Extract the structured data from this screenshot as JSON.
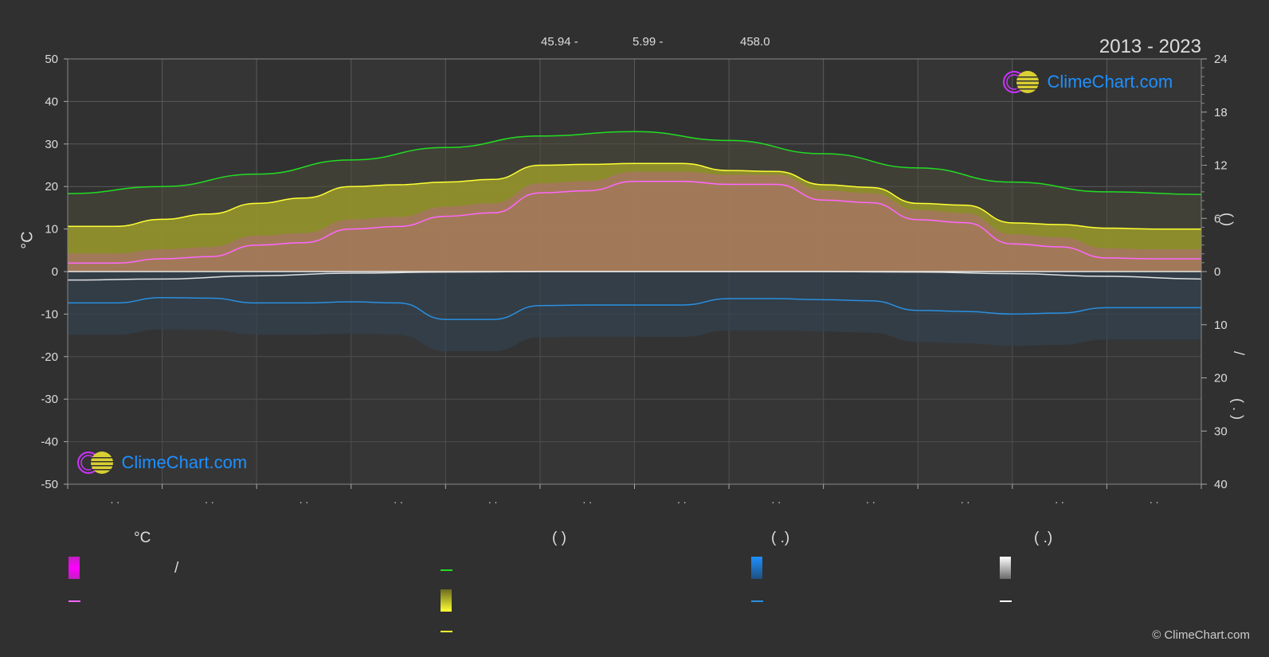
{
  "header": {
    "stat_1": "45.94 -",
    "stat_2": "5.99 -",
    "stat_3": "458.0",
    "year_range": "2013 - 2023"
  },
  "brand": {
    "text": "ClimeChart.com",
    "copyright": "© ClimeChart.com"
  },
  "legend": {
    "col1": {
      "heading": "°C",
      "item1": "/"
    },
    "col2": {
      "heading": "(            )"
    },
    "col3": {
      "heading": "(    .)"
    },
    "col4": {
      "heading": "(    .)"
    }
  },
  "colors": {
    "background": "#303030",
    "daylight": "#22dd22",
    "sunshine": "#ffff33",
    "sunshine_fill": "#9a9a2c",
    "max_temp": "#ff66ff",
    "temp_fill": "#cc55aa",
    "precip": "#2a8fe0",
    "snow": "#e0e0e0",
    "grid": "#5a5a5a"
  },
  "chart_data": {
    "type": "area",
    "x_ticks": [
      ". .",
      ". .",
      ". .",
      ". .",
      ". .",
      ". .",
      ". .",
      ". .",
      ". .",
      ". .",
      ". .",
      ". ."
    ],
    "y_left": {
      "label": "°C",
      "range": [
        -50,
        50
      ],
      "ticks": [
        50,
        40,
        30,
        20,
        10,
        0,
        -10,
        -20,
        -30,
        -40,
        -50
      ]
    },
    "y_right_top": {
      "label": "(    )",
      "range": [
        0,
        24
      ],
      "ticks": [
        24,
        18,
        12,
        6,
        0
      ]
    },
    "y_right_bottom": {
      "label": "/",
      "label2": "( . )",
      "range": [
        0,
        40
      ],
      "ticks": [
        10,
        20,
        30,
        40
      ]
    },
    "grid": true,
    "series": [
      {
        "key": "daylight",
        "x": [
          0,
          1,
          2,
          3,
          4,
          5,
          6,
          7,
          8,
          9,
          10,
          11,
          12
        ],
        "values": [
          8.8,
          9.6,
          11.0,
          12.6,
          14.0,
          15.3,
          15.8,
          14.8,
          13.3,
          11.7,
          10.1,
          9.0,
          8.7
        ]
      },
      {
        "key": "sunshine",
        "x": [
          0,
          0.5,
          1,
          1.5,
          2,
          2.5,
          3,
          3.5,
          4,
          4.5,
          5,
          5.5,
          6,
          6.5,
          7,
          7.5,
          8,
          8.5,
          9,
          9.5,
          10,
          10.5,
          11,
          11.5,
          12
        ],
        "values": [
          5.1,
          5.1,
          5.9,
          6.5,
          7.7,
          8.3,
          9.6,
          9.8,
          10.1,
          10.4,
          12.0,
          12.1,
          12.2,
          12.2,
          11.4,
          11.3,
          9.8,
          9.5,
          7.7,
          7.5,
          5.5,
          5.3,
          4.9,
          4.8,
          4.8
        ]
      },
      {
        "key": "max_temp",
        "x": [
          0,
          0.5,
          1,
          1.5,
          2,
          2.5,
          3,
          3.5,
          4,
          4.5,
          5,
          5.5,
          6,
          6.5,
          7,
          7.5,
          8,
          8.5,
          9,
          9.5,
          10,
          10.5,
          11,
          11.5,
          12
        ],
        "values": [
          2.0,
          2.0,
          3.0,
          3.5,
          6.2,
          6.8,
          10.0,
          10.6,
          13.0,
          13.8,
          18.5,
          19.0,
          21.2,
          21.2,
          20.5,
          20.5,
          16.8,
          16.2,
          12.2,
          11.5,
          6.5,
          5.8,
          3.2,
          3.0,
          3.0
        ]
      },
      {
        "key": "precip",
        "x": [
          0,
          0.5,
          1,
          1.5,
          2,
          2.5,
          3,
          3.5,
          4,
          4.5,
          5,
          5.5,
          6,
          6.5,
          7,
          7.5,
          8,
          8.5,
          9,
          9.5,
          10,
          10.5,
          11,
          11.5,
          12
        ],
        "values": [
          5.9,
          5.9,
          4.9,
          5.0,
          5.9,
          5.9,
          5.7,
          5.9,
          9.0,
          9.0,
          6.4,
          6.3,
          6.3,
          6.3,
          5.1,
          5.1,
          5.3,
          5.5,
          7.3,
          7.5,
          8.0,
          7.8,
          6.8,
          6.8,
          6.8
        ]
      },
      {
        "key": "snow",
        "x": [
          0,
          1,
          2,
          3,
          4,
          5,
          6,
          7,
          8,
          9,
          10,
          11,
          12
        ],
        "values": [
          1.6,
          1.4,
          0.8,
          0.3,
          0.1,
          0.0,
          0.0,
          0.0,
          0.0,
          0.1,
          0.4,
          0.9,
          1.4
        ]
      }
    ]
  }
}
